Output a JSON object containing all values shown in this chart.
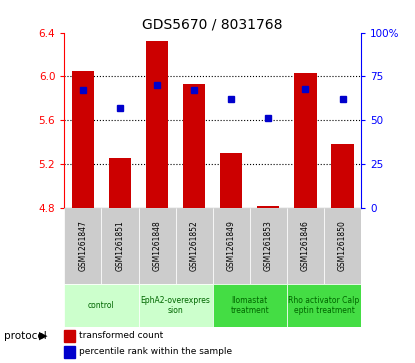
{
  "title": "GDS5670 / 8031768",
  "samples": [
    "GSM1261847",
    "GSM1261851",
    "GSM1261848",
    "GSM1261852",
    "GSM1261849",
    "GSM1261853",
    "GSM1261846",
    "GSM1261850"
  ],
  "transformed_counts": [
    6.05,
    5.25,
    6.32,
    5.93,
    5.3,
    4.82,
    6.03,
    5.38
  ],
  "percentile_ranks": [
    67,
    57,
    70,
    67,
    62,
    51,
    68,
    62
  ],
  "ylim_left": [
    4.8,
    6.4
  ],
  "ylim_right": [
    0,
    100
  ],
  "yticks_left": [
    4.8,
    5.2,
    5.6,
    6.0,
    6.4
  ],
  "yticks_right": [
    0,
    25,
    50,
    75,
    100
  ],
  "ytick_labels_right": [
    "0",
    "25",
    "50",
    "75",
    "100%"
  ],
  "bar_color": "#cc0000",
  "dot_color": "#0000cc",
  "bar_bottom": 4.8,
  "protocol_label": "protocol",
  "legend_bar_label": "transformed count",
  "legend_dot_label": "percentile rank within the sample",
  "bg_color_samples": "#cccccc",
  "proto_spans": [
    {
      "start": 0,
      "end": 1,
      "label": "control",
      "color": "#ccffcc"
    },
    {
      "start": 2,
      "end": 3,
      "label": "EphA2-overexpres\nsion",
      "color": "#ccffcc"
    },
    {
      "start": 4,
      "end": 5,
      "label": "Ilomastat\ntreatment",
      "color": "#44dd44"
    },
    {
      "start": 6,
      "end": 7,
      "label": "Rho activator Calp\neptin treatment",
      "color": "#44dd44"
    }
  ]
}
